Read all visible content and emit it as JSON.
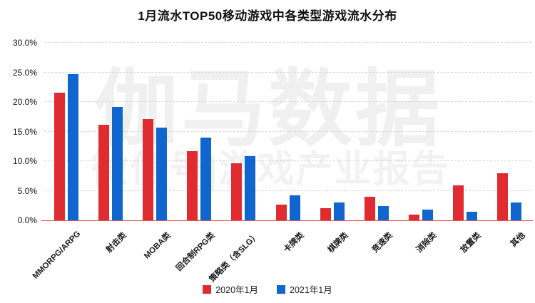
{
  "chart_data": {
    "type": "bar",
    "title": "1月流水TOP50移动游戏中各类型游戏流水分布",
    "categories": [
      "MMORPG/ARPG",
      "射击类",
      "MOBA类",
      "回合制RPG类",
      "策略类（含SLG）",
      "卡牌类",
      "棋牌类",
      "竞速类",
      "消除类",
      "放置类",
      "其他"
    ],
    "series": [
      {
        "name": "2020年1月",
        "color": "#e02c30",
        "values": [
          21.6,
          16.2,
          17.1,
          11.7,
          9.6,
          2.6,
          2.0,
          4.0,
          1.0,
          5.9,
          7.9
        ]
      },
      {
        "name": "2021年1月",
        "color": "#1065cf",
        "values": [
          24.7,
          19.2,
          15.7,
          14.0,
          10.9,
          4.2,
          3.0,
          2.4,
          1.8,
          1.5,
          3.0
        ]
      }
    ],
    "ylim": [
      0,
      30
    ],
    "ytick_step": 5,
    "ytick_labels": [
      "0.0%",
      "5.0%",
      "10.0%",
      "15.0%",
      "20.0%",
      "25.0%",
      "30.0%"
    ],
    "xlabel": "",
    "ylabel": "",
    "grid": "horizontal-dashed",
    "legend_position": "bottom-center",
    "axis_line_color": "#e05555",
    "grid_color": "#d8d8d8"
  },
  "watermark": {
    "line1": "伽马数据",
    "line2": "微信号|游戏产业报告"
  }
}
